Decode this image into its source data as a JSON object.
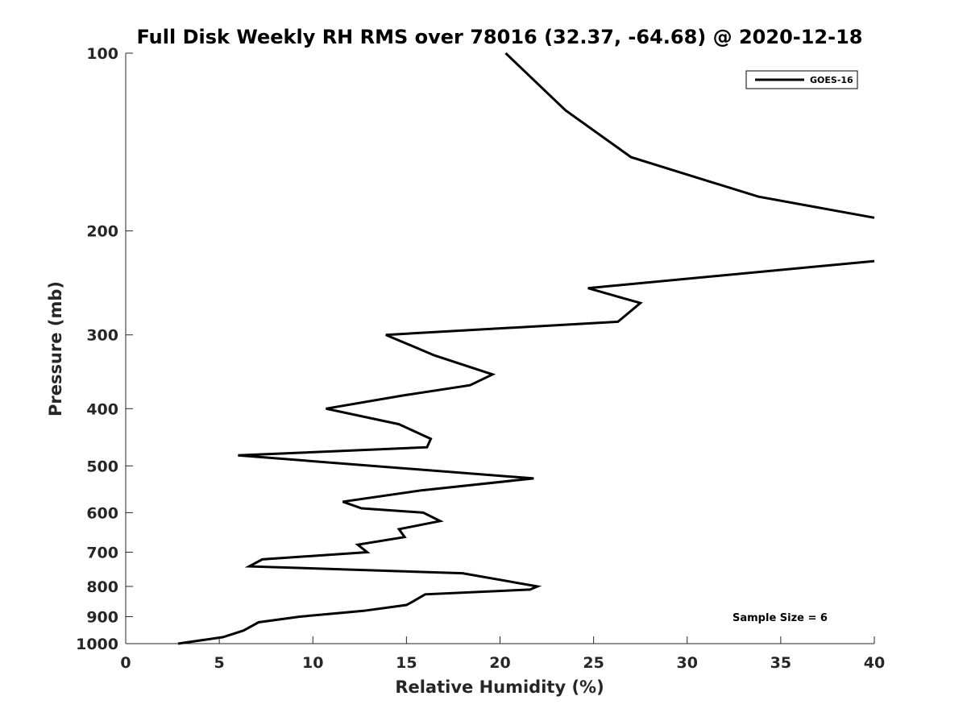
{
  "chart_data": {
    "type": "line",
    "title": "Full Disk Weekly RH RMS over 78016 (32.37, -64.68) @ 2020-12-18",
    "xlabel": "Relative Humidity (%)",
    "ylabel": "Pressure (mb)",
    "xlim": [
      0,
      40
    ],
    "ylim": [
      100,
      1000
    ],
    "y_scale": "log",
    "y_reversed": true,
    "grid": false,
    "legend_position": "top-right",
    "x_ticks": [
      0,
      5,
      10,
      15,
      20,
      25,
      30,
      35,
      40
    ],
    "y_ticks": [
      100,
      200,
      300,
      400,
      500,
      600,
      700,
      800,
      900,
      1000
    ],
    "series": [
      {
        "name": "GOES-16",
        "color": "#000000",
        "segments": [
          [
            {
              "x": 20.3,
              "y": 100
            },
            {
              "x": 23.5,
              "y": 125
            },
            {
              "x": 27.0,
              "y": 150
            },
            {
              "x": 33.8,
              "y": 175
            },
            {
              "x": 40.0,
              "y": 190
            }
          ],
          [
            {
              "x": 40.0,
              "y": 225
            },
            {
              "x": 24.7,
              "y": 250
            },
            {
              "x": 27.5,
              "y": 265
            },
            {
              "x": 26.3,
              "y": 285
            },
            {
              "x": 13.9,
              "y": 300
            },
            {
              "x": 16.5,
              "y": 325
            },
            {
              "x": 19.6,
              "y": 350
            },
            {
              "x": 18.4,
              "y": 365
            },
            {
              "x": 14.8,
              "y": 380
            },
            {
              "x": 10.7,
              "y": 400
            },
            {
              "x": 14.6,
              "y": 425
            },
            {
              "x": 16.3,
              "y": 450
            },
            {
              "x": 16.1,
              "y": 465
            },
            {
              "x": 6.0,
              "y": 480
            },
            {
              "x": 21.8,
              "y": 525
            },
            {
              "x": 15.8,
              "y": 550
            },
            {
              "x": 11.6,
              "y": 575
            },
            {
              "x": 12.6,
              "y": 590
            },
            {
              "x": 15.9,
              "y": 600
            },
            {
              "x": 16.8,
              "y": 620
            },
            {
              "x": 14.6,
              "y": 640
            },
            {
              "x": 14.9,
              "y": 660
            },
            {
              "x": 12.4,
              "y": 680
            },
            {
              "x": 12.9,
              "y": 700
            },
            {
              "x": 7.3,
              "y": 720
            },
            {
              "x": 6.6,
              "y": 740
            },
            {
              "x": 18.0,
              "y": 760
            },
            {
              "x": 22.0,
              "y": 800
            },
            {
              "x": 21.6,
              "y": 810
            },
            {
              "x": 16.0,
              "y": 825
            },
            {
              "x": 15.3,
              "y": 850
            },
            {
              "x": 15.0,
              "y": 860
            },
            {
              "x": 12.7,
              "y": 880
            },
            {
              "x": 9.3,
              "y": 900
            },
            {
              "x": 7.1,
              "y": 920
            },
            {
              "x": 6.3,
              "y": 950
            },
            {
              "x": 5.2,
              "y": 975
            },
            {
              "x": 2.8,
              "y": 1000
            }
          ]
        ]
      }
    ],
    "annotations": [
      {
        "text": "Sample Size = 6",
        "position": "bottom-right"
      }
    ]
  }
}
